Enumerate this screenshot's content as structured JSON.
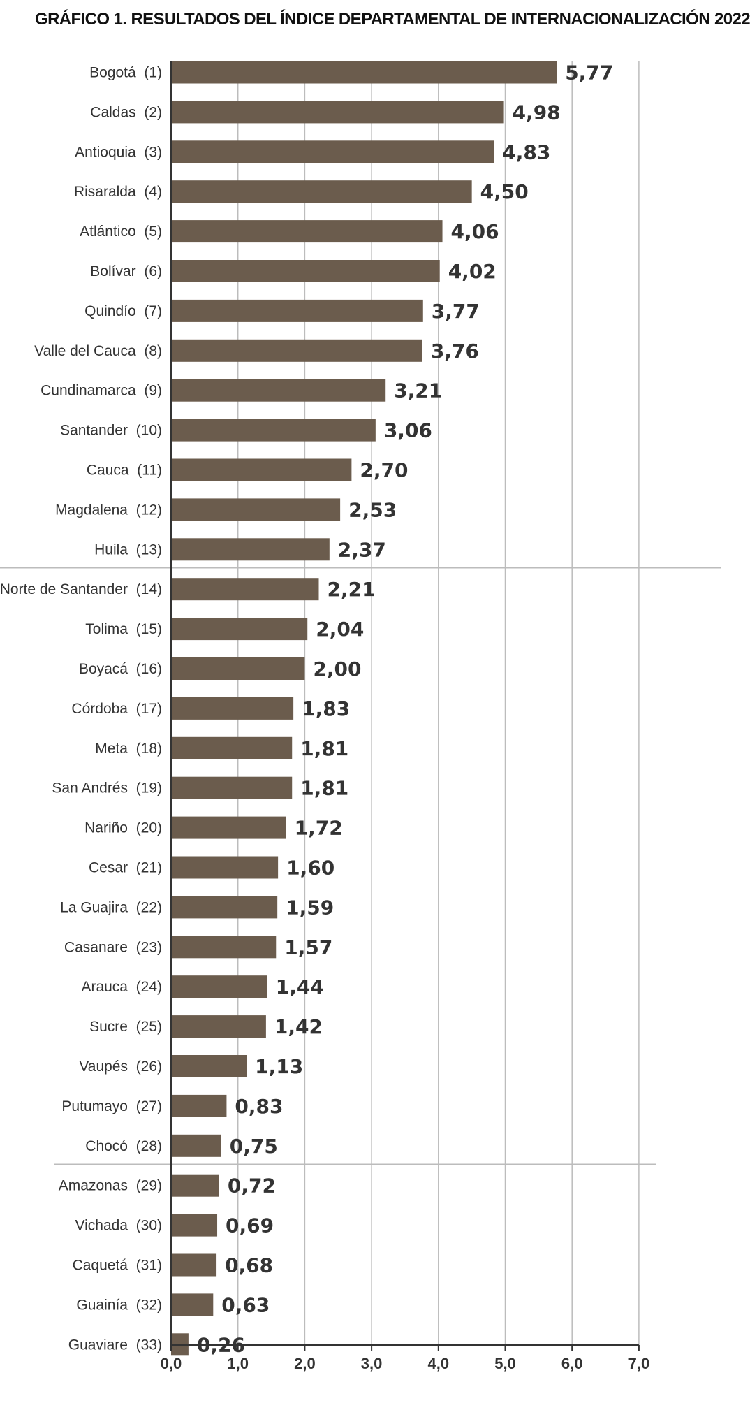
{
  "title_lead": "GRÁFICO 1.",
  "title_rest": "RESULTADOS DEL ÍNDICE DEPARTAMENTAL DE INTERNACIONALIZACIÓN 2022",
  "chart_data": {
    "type": "bar",
    "orientation": "horizontal",
    "title": "GRÁFICO 1. RESULTADOS DEL ÍNDICE DEPARTAMENTAL DE INTERNACIONALIZACIÓN 2022",
    "xlabel": "",
    "ylabel": "",
    "xlim": [
      0,
      7
    ],
    "x_ticks": [
      "0,0",
      "1,0",
      "2,0",
      "3,0",
      "4,0",
      "5,0",
      "6,0",
      "7,0"
    ],
    "grid": "vertical",
    "bar_color": "#6b5c4d",
    "group_separators_after": [
      13,
      28
    ],
    "categories": [
      "Bogotá  (1)",
      "Caldas  (2)",
      "Antioquia  (3)",
      "Risaralda  (4)",
      "Atlántico  (5)",
      "Bolívar  (6)",
      "Quindío  (7)",
      "Valle del Cauca  (8)",
      "Cundinamarca  (9)",
      "Santander  (10)",
      "Cauca  (11)",
      "Magdalena  (12)",
      "Huila  (13)",
      "Norte de Santander  (14)",
      "Tolima  (15)",
      "Boyacá  (16)",
      "Córdoba  (17)",
      "Meta  (18)",
      "San Andrés  (19)",
      "Nariño  (20)",
      "Cesar  (21)",
      "La Guajira  (22)",
      "Casanare  (23)",
      "Arauca  (24)",
      "Sucre  (25)",
      "Vaupés  (26)",
      "Putumayo  (27)",
      "Chocó  (28)",
      "Amazonas  (29)",
      "Vichada  (30)",
      "Caquetá  (31)",
      "Guainía  (32)",
      "Guaviare  (33)"
    ],
    "values": [
      5.77,
      4.98,
      4.83,
      4.5,
      4.06,
      4.02,
      3.77,
      3.76,
      3.21,
      3.06,
      2.7,
      2.53,
      2.37,
      2.21,
      2.04,
      2.0,
      1.83,
      1.81,
      1.81,
      1.72,
      1.6,
      1.59,
      1.57,
      1.44,
      1.42,
      1.13,
      0.83,
      0.75,
      0.72,
      0.69,
      0.68,
      0.63,
      0.26
    ],
    "value_labels": [
      "5,77",
      "4,98",
      "4,83",
      "4,50",
      "4,06",
      "4,02",
      "3,77",
      "3,76",
      "3,21",
      "3,06",
      "2,70",
      "2,53",
      "2,37",
      "2,21",
      "2,04",
      "2,00",
      "1,83",
      "1,81",
      "1,81",
      "1,72",
      "1,60",
      "1,59",
      "1,57",
      "1,44",
      "1,42",
      "1,13",
      "0,83",
      "0,75",
      "0,72",
      "0,69",
      "0,68",
      "0,63",
      "0,26"
    ]
  }
}
